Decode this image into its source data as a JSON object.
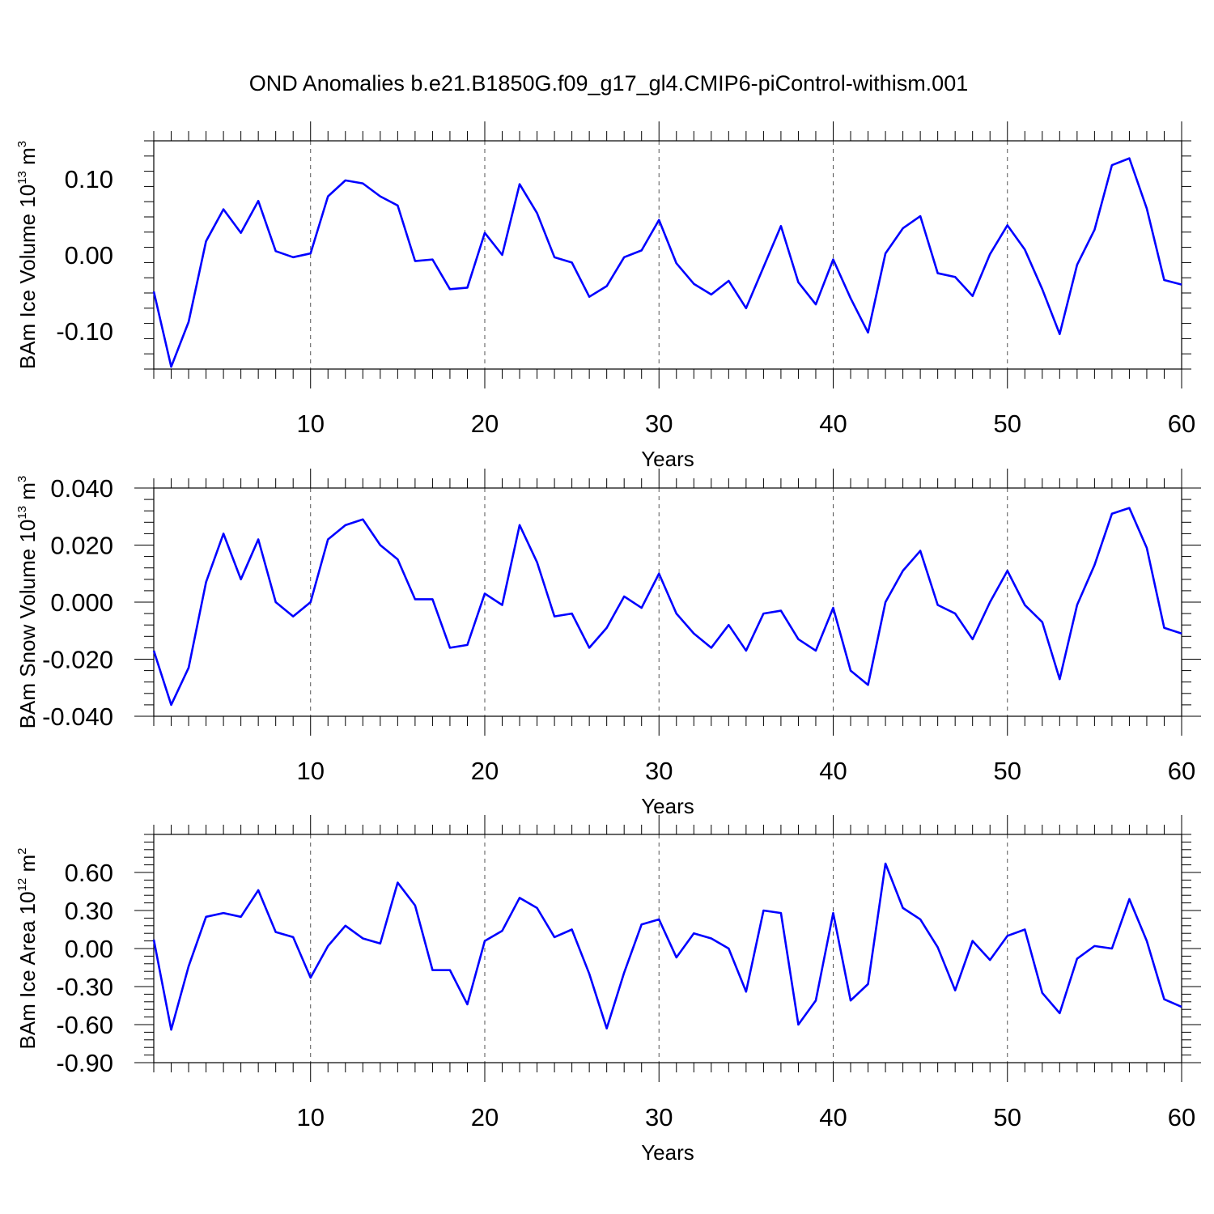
{
  "title": "OND Anomalies b.e21.B1850G.f09_g17_gl4.CMIP6-piControl-withism.001",
  "colors": {
    "line": "#0000ff",
    "axis": "#000000",
    "grid": "#555555"
  },
  "chart_data": [
    {
      "type": "line",
      "xlabel": "Years",
      "ylabel": {
        "main": "BAm Ice Volume 10",
        "exp": "13",
        "unit": " m",
        "unit_exp": "3"
      },
      "xlim": [
        1,
        60
      ],
      "ylim": [
        -0.15,
        0.15
      ],
      "grid": "vertical dashed at major x ticks",
      "x_ticks": [
        10,
        20,
        30,
        40,
        50,
        60
      ],
      "x_tick_labels": [
        "10",
        "20",
        "30",
        "40",
        "50",
        "60"
      ],
      "y_ticks": [
        -0.1,
        0.0,
        0.1
      ],
      "y_tick_labels": [
        "-0.10",
        "0.00",
        "0.10"
      ],
      "x": [
        1,
        2,
        3,
        4,
        5,
        6,
        7,
        8,
        9,
        10,
        11,
        12,
        13,
        14,
        15,
        16,
        17,
        18,
        19,
        20,
        21,
        22,
        23,
        24,
        25,
        26,
        27,
        28,
        29,
        30,
        31,
        32,
        33,
        34,
        35,
        36,
        37,
        38,
        39,
        40,
        41,
        42,
        43,
        44,
        45,
        46,
        47,
        48,
        49,
        50,
        51,
        52,
        53,
        54,
        55,
        56,
        57,
        58,
        59,
        60
      ],
      "series": [
        {
          "values": [
            -0.048,
            -0.147,
            -0.088,
            0.018,
            0.06,
            0.029,
            0.071,
            0.005,
            -0.003,
            0.002,
            0.077,
            0.098,
            0.094,
            0.077,
            0.065,
            -0.008,
            -0.006,
            -0.045,
            -0.043,
            0.029,
            0.0,
            0.093,
            0.055,
            -0.003,
            -0.01,
            -0.055,
            -0.041,
            -0.003,
            0.006,
            0.046,
            -0.011,
            -0.038,
            -0.052,
            -0.034,
            -0.07,
            -0.016,
            0.038,
            -0.036,
            -0.065,
            -0.006,
            -0.057,
            -0.102,
            0.002,
            0.035,
            0.051,
            -0.024,
            -0.029,
            -0.054,
            0.001,
            0.039,
            0.007,
            -0.045,
            -0.104,
            -0.013,
            0.033,
            0.118,
            0.127,
            0.061,
            -0.033,
            -0.039
          ]
        }
      ]
    },
    {
      "type": "line",
      "xlabel": "Years",
      "ylabel": {
        "main": "BAm Snow Volume 10",
        "exp": "13",
        "unit": " m",
        "unit_exp": "3"
      },
      "xlim": [
        1,
        60
      ],
      "ylim": [
        -0.04,
        0.04
      ],
      "grid": "vertical dashed at major x ticks",
      "x_ticks": [
        10,
        20,
        30,
        40,
        50,
        60
      ],
      "x_tick_labels": [
        "10",
        "20",
        "30",
        "40",
        "50",
        "60"
      ],
      "y_ticks": [
        -0.04,
        -0.02,
        0.0,
        0.02,
        0.04
      ],
      "y_tick_labels": [
        "-0.040",
        "-0.020",
        "0.000",
        "0.020",
        "0.040"
      ],
      "x": [
        1,
        2,
        3,
        4,
        5,
        6,
        7,
        8,
        9,
        10,
        11,
        12,
        13,
        14,
        15,
        16,
        17,
        18,
        19,
        20,
        21,
        22,
        23,
        24,
        25,
        26,
        27,
        28,
        29,
        30,
        31,
        32,
        33,
        34,
        35,
        36,
        37,
        38,
        39,
        40,
        41,
        42,
        43,
        44,
        45,
        46,
        47,
        48,
        49,
        50,
        51,
        52,
        53,
        54,
        55,
        56,
        57,
        58,
        59,
        60
      ],
      "series": [
        {
          "values": [
            -0.017,
            -0.036,
            -0.023,
            0.007,
            0.024,
            0.008,
            0.022,
            0.0,
            -0.005,
            0.0,
            0.022,
            0.027,
            0.029,
            0.02,
            0.015,
            0.001,
            0.001,
            -0.016,
            -0.015,
            0.003,
            -0.001,
            0.027,
            0.014,
            -0.005,
            -0.004,
            -0.016,
            -0.009,
            0.002,
            -0.002,
            0.01,
            -0.004,
            -0.011,
            -0.016,
            -0.008,
            -0.017,
            -0.004,
            -0.003,
            -0.013,
            -0.017,
            -0.002,
            -0.024,
            -0.029,
            0.0,
            0.011,
            0.018,
            -0.001,
            -0.004,
            -0.013,
            0.0,
            0.011,
            -0.001,
            -0.007,
            -0.027,
            -0.001,
            0.013,
            0.031,
            0.033,
            0.019,
            -0.009,
            -0.011
          ]
        }
      ]
    },
    {
      "type": "line",
      "xlabel": "Years",
      "ylabel": {
        "main": "BAm Ice Area 10",
        "exp": "12",
        "unit": " m",
        "unit_exp": "2"
      },
      "xlim": [
        1,
        60
      ],
      "ylim": [
        -0.9,
        0.9
      ],
      "grid": "vertical dashed at major x ticks",
      "x_ticks": [
        10,
        20,
        30,
        40,
        50,
        60
      ],
      "x_tick_labels": [
        "10",
        "20",
        "30",
        "40",
        "50",
        "60"
      ],
      "y_ticks": [
        -0.9,
        -0.6,
        -0.3,
        0.0,
        0.3,
        0.6
      ],
      "y_tick_labels": [
        "-0.90",
        "-0.60",
        "-0.30",
        "0.00",
        "0.30",
        "0.60"
      ],
      "x": [
        1,
        2,
        3,
        4,
        5,
        6,
        7,
        8,
        9,
        10,
        11,
        12,
        13,
        14,
        15,
        16,
        17,
        18,
        19,
        20,
        21,
        22,
        23,
        24,
        25,
        26,
        27,
        28,
        29,
        30,
        31,
        32,
        33,
        34,
        35,
        36,
        37,
        38,
        39,
        40,
        41,
        42,
        43,
        44,
        45,
        46,
        47,
        48,
        49,
        50,
        51,
        52,
        53,
        54,
        55,
        56,
        57,
        58,
        59,
        60
      ],
      "series": [
        {
          "values": [
            0.07,
            -0.64,
            -0.14,
            0.25,
            0.28,
            0.25,
            0.46,
            0.13,
            0.09,
            -0.23,
            0.02,
            0.18,
            0.08,
            0.04,
            0.52,
            0.34,
            -0.17,
            -0.17,
            -0.44,
            0.06,
            0.14,
            0.4,
            0.32,
            0.09,
            0.15,
            -0.2,
            -0.63,
            -0.19,
            0.19,
            0.23,
            -0.07,
            0.12,
            0.08,
            0.0,
            -0.34,
            0.3,
            0.28,
            -0.6,
            -0.41,
            0.28,
            -0.41,
            -0.28,
            0.67,
            0.32,
            0.23,
            0.01,
            -0.33,
            0.06,
            -0.09,
            0.1,
            0.15,
            -0.35,
            -0.51,
            -0.08,
            0.02,
            0.0,
            0.39,
            0.06,
            -0.4,
            -0.46
          ]
        }
      ]
    }
  ]
}
